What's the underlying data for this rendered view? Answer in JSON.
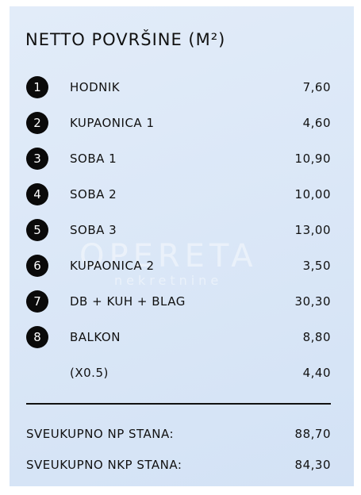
{
  "title": "NETTO POVRŠINE (M²)",
  "rows": [
    {
      "number": "1",
      "label": "HODNIK",
      "value": "7,60"
    },
    {
      "number": "2",
      "label": "KUPAONICA 1",
      "value": "4,60"
    },
    {
      "number": "3",
      "label": "SOBA 1",
      "value": "10,90"
    },
    {
      "number": "4",
      "label": "SOBA 2",
      "value": "10,00"
    },
    {
      "number": "5",
      "label": "SOBA 3",
      "value": "13,00"
    },
    {
      "number": "6",
      "label": "KUPAONICA 2",
      "value": "3,50"
    },
    {
      "number": "7",
      "label": "DB + KUH + BLAG",
      "value": "30,30"
    },
    {
      "number": "8",
      "label": "BALKON",
      "value": "8,80"
    }
  ],
  "factor_row": {
    "label": "(X0.5)",
    "value": "4,40"
  },
  "totals": [
    {
      "label": "SVEUKUPNO NP STANA:",
      "value": "88,70"
    },
    {
      "label": "SVEUKUPNO NKP STANA:",
      "value": "84,30"
    }
  ],
  "watermark": {
    "brand": "OPERETA",
    "sub": "nekretnine"
  }
}
